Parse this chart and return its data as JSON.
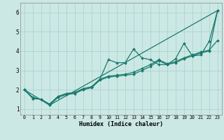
{
  "xlabel": "Humidex (Indice chaleur)",
  "bg_color": "#cce8e4",
  "grid_color": "#aad4ce",
  "line_color": "#1a7a6e",
  "xlim": [
    -0.5,
    23.5
  ],
  "ylim": [
    0.7,
    6.5
  ],
  "xticks": [
    0,
    1,
    2,
    3,
    4,
    5,
    6,
    7,
    8,
    9,
    10,
    11,
    12,
    13,
    14,
    15,
    16,
    17,
    18,
    19,
    20,
    21,
    22,
    23
  ],
  "yticks": [
    1,
    2,
    3,
    4,
    5,
    6
  ],
  "line1_x": [
    0,
    1,
    2,
    3,
    4,
    5,
    6,
    7,
    8,
    9,
    10,
    11,
    12,
    13,
    14,
    15,
    16,
    17,
    18,
    19,
    20,
    21,
    22,
    23
  ],
  "line1_y": [
    2.0,
    1.6,
    1.5,
    1.2,
    1.6,
    1.75,
    1.8,
    2.0,
    2.1,
    2.5,
    2.65,
    2.7,
    2.75,
    2.8,
    3.0,
    3.2,
    3.5,
    3.3,
    3.4,
    3.6,
    3.75,
    3.9,
    4.0,
    6.1
  ],
  "line2_x": [
    0,
    1,
    2,
    3,
    4,
    5,
    6,
    7,
    8,
    9,
    10,
    11,
    12,
    13,
    14,
    15,
    16,
    17,
    18,
    19,
    20,
    21,
    22,
    23
  ],
  "line2_y": [
    2.0,
    1.55,
    1.5,
    1.25,
    1.65,
    1.8,
    1.85,
    2.05,
    2.15,
    2.55,
    3.55,
    3.4,
    3.4,
    4.1,
    3.65,
    3.55,
    3.3,
    3.3,
    3.6,
    4.4,
    3.75,
    3.8,
    4.5,
    6.1
  ],
  "line3_x": [
    0,
    1,
    2,
    3,
    4,
    5,
    6,
    7,
    8,
    9,
    10,
    11,
    12,
    13,
    14,
    15,
    16,
    17,
    18,
    19,
    20,
    21,
    22,
    23
  ],
  "line3_y": [
    2.0,
    1.55,
    1.5,
    1.25,
    1.65,
    1.8,
    1.85,
    2.05,
    2.15,
    2.55,
    2.7,
    2.75,
    2.8,
    2.9,
    3.1,
    3.3,
    3.55,
    3.35,
    3.45,
    3.65,
    3.8,
    3.95,
    4.05,
    4.55
  ],
  "line4_x": [
    0,
    3,
    23
  ],
  "line4_y": [
    2.0,
    1.2,
    6.1
  ]
}
